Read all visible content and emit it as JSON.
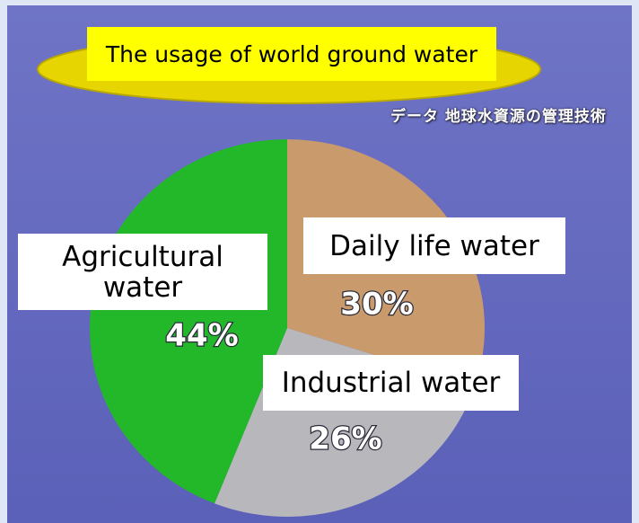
{
  "chart_data": {
    "type": "pie",
    "title": "The usage of world ground water",
    "source": "データ 地球水資源の管理技術",
    "categories": [
      "Daily life water",
      "Industrial water",
      "Agricultural water"
    ],
    "values": [
      30,
      26,
      44
    ],
    "value_labels": [
      "30%",
      "26%",
      "44%"
    ],
    "colors": [
      "#c99a6c",
      "#b8b8bc",
      "#22b829"
    ],
    "start_angle": 0,
    "direction": "clockwise"
  }
}
